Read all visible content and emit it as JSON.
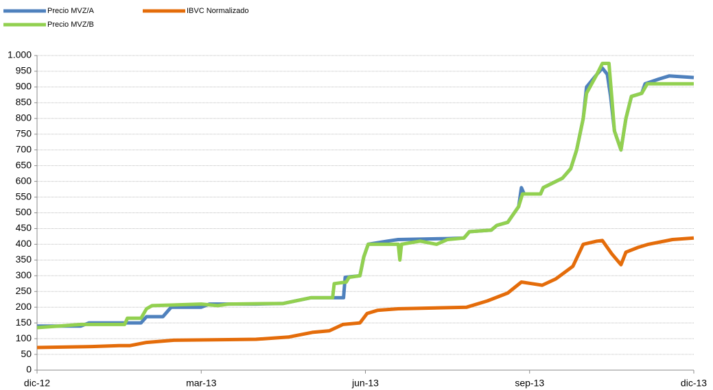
{
  "chart_data": {
    "type": "line",
    "xlim": [
      0,
      12
    ],
    "xticks": [
      {
        "value": 0,
        "label": "dic-12"
      },
      {
        "value": 3,
        "label": "mar-13"
      },
      {
        "value": 6,
        "label": "jun-13"
      },
      {
        "value": 9,
        "label": "sep-13"
      },
      {
        "value": 12,
        "label": "dic-13"
      }
    ],
    "ylim": [
      0,
      1000
    ],
    "yticks": [
      0,
      50,
      100,
      150,
      200,
      250,
      300,
      350,
      400,
      450,
      500,
      550,
      600,
      650,
      700,
      750,
      800,
      850,
      900,
      950,
      {
        "value": 1000,
        "label": "1.000"
      }
    ],
    "grid": true,
    "legend": "top-left",
    "series": [
      {
        "name": "Precio MVZ/A",
        "color": "#4f81bd",
        "x": [
          0,
          0.8,
          0.95,
          1.9,
          2.0,
          2.3,
          2.45,
          3.0,
          3.15,
          4.0,
          4.5,
          5.0,
          5.6,
          5.63,
          5.9,
          5.97,
          6.05,
          6.4,
          6.6,
          7.5,
          7.8,
          7.9,
          8.3,
          8.4,
          8.6,
          8.8,
          8.85,
          8.9,
          9.2,
          9.25,
          9.6,
          9.75,
          9.86,
          9.98,
          10.04,
          10.23,
          10.33,
          10.42,
          10.48,
          10.55,
          10.67,
          10.76,
          10.86,
          11.05,
          11.11,
          11.36,
          11.55,
          12
        ],
        "values": [
          140,
          140,
          150,
          150,
          170,
          170,
          200,
          200,
          210,
          210,
          212,
          230,
          230,
          295,
          300,
          360,
          400,
          410,
          415,
          418,
          420,
          440,
          445,
          460,
          470,
          520,
          580,
          560,
          560,
          580,
          610,
          640,
          700,
          800,
          900,
          940,
          960,
          940,
          870,
          760,
          700,
          800,
          870,
          880,
          910,
          925,
          935,
          930
        ]
      },
      {
        "name": "IBVC Normalizado",
        "color": "#e46c0a",
        "x": [
          0,
          1.0,
          1.5,
          1.7,
          2.0,
          2.5,
          3.5,
          4.0,
          4.59,
          5.03,
          5.34,
          5.59,
          5.9,
          6.03,
          6.22,
          6.6,
          7.35,
          7.85,
          8.23,
          8.6,
          8.85,
          9.04,
          9.23,
          9.48,
          9.79,
          9.98,
          10.23,
          10.33,
          10.5,
          10.67,
          10.76,
          10.98,
          11.17,
          11.61,
          12
        ],
        "values": [
          72,
          75,
          78,
          78,
          88,
          95,
          97,
          98,
          105,
          120,
          125,
          145,
          150,
          180,
          190,
          195,
          198,
          200,
          220,
          245,
          280,
          275,
          270,
          290,
          330,
          400,
          410,
          412,
          370,
          335,
          375,
          390,
          400,
          415,
          420
        ]
      },
      {
        "name": "Precio MVZ/B",
        "color": "#92d050",
        "x": [
          0,
          0.4,
          0.8,
          1.6,
          1.65,
          1.9,
          2.0,
          2.1,
          3.0,
          3.3,
          3.5,
          4.5,
          5.0,
          5.4,
          5.43,
          5.65,
          5.7,
          5.9,
          5.97,
          6.05,
          6.6,
          6.63,
          6.66,
          7.0,
          7.3,
          7.5,
          7.8,
          7.9,
          8.3,
          8.4,
          8.6,
          8.8,
          8.87,
          9.2,
          9.25,
          9.6,
          9.75,
          9.86,
          9.98,
          10.04,
          10.23,
          10.33,
          10.45,
          10.5,
          10.55,
          10.67,
          10.76,
          10.86,
          11.05,
          11.15,
          12
        ],
        "values": [
          135,
          140,
          145,
          145,
          165,
          165,
          195,
          205,
          210,
          205,
          210,
          212,
          230,
          230,
          275,
          280,
          295,
          300,
          360,
          400,
          400,
          350,
          400,
          410,
          400,
          415,
          420,
          440,
          445,
          460,
          470,
          520,
          560,
          560,
          580,
          610,
          640,
          700,
          800,
          880,
          940,
          975,
          975,
          870,
          760,
          700,
          800,
          870,
          880,
          910,
          910
        ]
      }
    ]
  }
}
